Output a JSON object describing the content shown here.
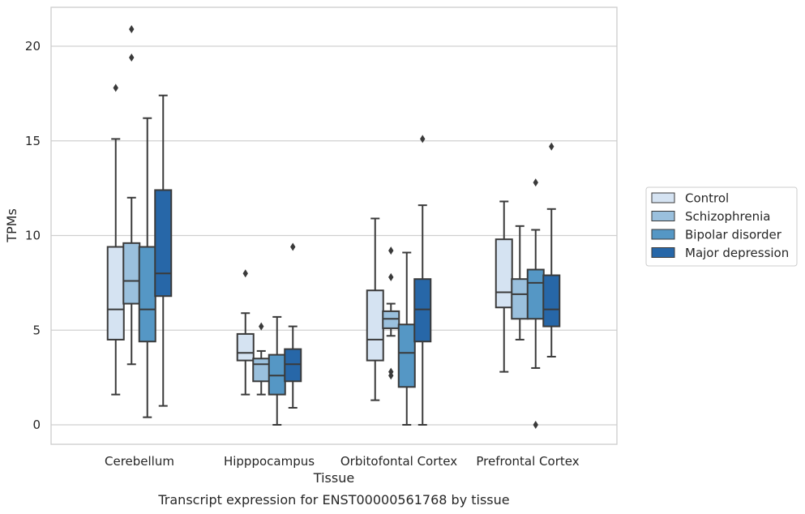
{
  "chart_data": {
    "type": "box",
    "title": "",
    "caption": "Transcript expression for ENST00000561768 by tissue",
    "xlabel": "Tissue",
    "ylabel": "TPMs",
    "ylim": [
      -1,
      22.4
    ],
    "yticks": [
      0,
      5,
      10,
      15,
      20
    ],
    "grid": "horizontal",
    "legend_position": "right",
    "categories": [
      "Cerebellum",
      "Hipppocampus",
      "Orbitofontal Cortex",
      "Prefrontal Cortex"
    ],
    "series": [
      {
        "name": "Control",
        "color": "#d5e3f2",
        "boxes": [
          {
            "whisker_low": 1.6,
            "q1": 4.5,
            "median": 6.1,
            "q3": 9.4,
            "whisker_high": 15.1,
            "outliers": [
              17.8
            ]
          },
          {
            "whisker_low": 1.6,
            "q1": 3.4,
            "median": 3.8,
            "q3": 4.8,
            "whisker_high": 5.9,
            "outliers": [
              8.0
            ]
          },
          {
            "whisker_low": 1.3,
            "q1": 3.4,
            "median": 4.5,
            "q3": 7.1,
            "whisker_high": 10.9,
            "outliers": []
          },
          {
            "whisker_low": 2.8,
            "q1": 6.2,
            "median": 7.0,
            "q3": 9.8,
            "whisker_high": 11.8,
            "outliers": []
          }
        ]
      },
      {
        "name": "Schizophrenia",
        "color": "#9ac0dd",
        "boxes": [
          {
            "whisker_low": 3.2,
            "q1": 6.4,
            "median": 7.6,
            "q3": 9.6,
            "whisker_high": 12.0,
            "outliers": [
              19.4,
              20.9
            ]
          },
          {
            "whisker_low": 1.6,
            "q1": 2.3,
            "median": 3.2,
            "q3": 3.5,
            "whisker_high": 3.9,
            "outliers": [
              5.2
            ]
          },
          {
            "whisker_low": 4.7,
            "q1": 5.1,
            "median": 5.6,
            "q3": 6.0,
            "whisker_high": 6.4,
            "outliers": [
              9.2,
              7.8,
              2.8,
              2.6
            ]
          },
          {
            "whisker_low": 4.5,
            "q1": 5.6,
            "median": 6.9,
            "q3": 7.7,
            "whisker_high": 10.5,
            "outliers": []
          }
        ]
      },
      {
        "name": "Bipolar disorder",
        "color": "#5597c5",
        "boxes": [
          {
            "whisker_low": 0.4,
            "q1": 4.4,
            "median": 6.1,
            "q3": 9.4,
            "whisker_high": 16.2,
            "outliers": []
          },
          {
            "whisker_low": 0.0,
            "q1": 1.6,
            "median": 2.6,
            "q3": 3.7,
            "whisker_high": 5.7,
            "outliers": []
          },
          {
            "whisker_low": 0.0,
            "q1": 2.0,
            "median": 3.8,
            "q3": 5.3,
            "whisker_high": 9.1,
            "outliers": []
          },
          {
            "whisker_low": 3.0,
            "q1": 5.6,
            "median": 7.5,
            "q3": 8.2,
            "whisker_high": 10.3,
            "outliers": [
              12.8,
              0.0
            ]
          }
        ]
      },
      {
        "name": "Major depression",
        "color": "#2767a8",
        "boxes": [
          {
            "whisker_low": 1.0,
            "q1": 6.8,
            "median": 8.0,
            "q3": 12.4,
            "whisker_high": 17.4,
            "outliers": []
          },
          {
            "whisker_low": 0.9,
            "q1": 2.3,
            "median": 3.2,
            "q3": 4.0,
            "whisker_high": 5.2,
            "outliers": [
              9.4
            ]
          },
          {
            "whisker_low": 0.0,
            "q1": 4.4,
            "median": 6.1,
            "q3": 7.7,
            "whisker_high": 11.6,
            "outliers": [
              15.1
            ]
          },
          {
            "whisker_low": 3.6,
            "q1": 5.2,
            "median": 6.1,
            "q3": 7.9,
            "whisker_high": 11.4,
            "outliers": [
              14.7
            ]
          }
        ]
      }
    ]
  }
}
